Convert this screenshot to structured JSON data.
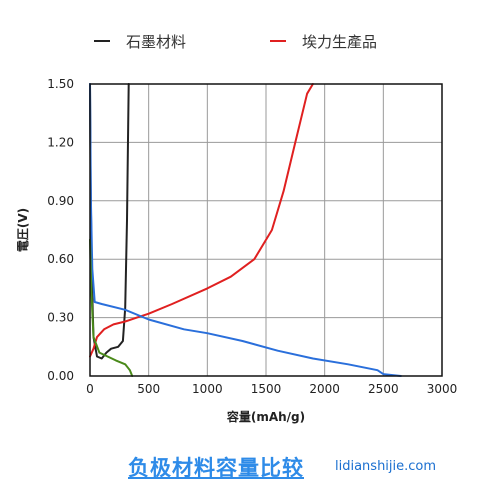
{
  "chart_data": {
    "type": "line",
    "xlabel": "容量(mAh/g)",
    "ylabel": "電圧(V)",
    "xlim": [
      0,
      3000
    ],
    "ylim": [
      0,
      1.5
    ],
    "x_ticks": [
      "0",
      "500",
      "1000",
      "1500",
      "2000",
      "2500",
      "3000"
    ],
    "y_ticks": [
      "0.00",
      "0.30",
      "0.60",
      "0.90",
      "1.20",
      "1.50"
    ],
    "grid": true,
    "legend": "top",
    "series": [
      {
        "name": "石墨材料",
        "color": "#222222",
        "points": [
          [
            0,
            1.5
          ],
          [
            5,
            1.0
          ],
          [
            15,
            0.5
          ],
          [
            30,
            0.2
          ],
          [
            60,
            0.1
          ],
          [
            100,
            0.09
          ],
          [
            140,
            0.12
          ],
          [
            180,
            0.14
          ],
          [
            240,
            0.15
          ],
          [
            280,
            0.18
          ],
          [
            300,
            0.35
          ],
          [
            315,
            0.8
          ],
          [
            330,
            1.5
          ]
        ]
      },
      {
        "name": "埃力生產品",
        "color": "#e02020",
        "points": [
          [
            0,
            0.1
          ],
          [
            30,
            0.14
          ],
          [
            60,
            0.2
          ],
          [
            120,
            0.24
          ],
          [
            200,
            0.265
          ],
          [
            300,
            0.28
          ],
          [
            400,
            0.3
          ],
          [
            500,
            0.32
          ],
          [
            700,
            0.37
          ],
          [
            1000,
            0.45
          ],
          [
            1200,
            0.51
          ],
          [
            1400,
            0.6
          ],
          [
            1550,
            0.75
          ],
          [
            1650,
            0.95
          ],
          [
            1750,
            1.2
          ],
          [
            1850,
            1.45
          ],
          [
            1900,
            1.5
          ]
        ]
      },
      {
        "name": "",
        "color": "#2a6fdb",
        "points": [
          [
            0,
            1.5
          ],
          [
            8,
            0.9
          ],
          [
            20,
            0.55
          ],
          [
            40,
            0.38
          ],
          [
            100,
            0.37
          ],
          [
            300,
            0.34
          ],
          [
            500,
            0.29
          ],
          [
            800,
            0.24
          ],
          [
            1000,
            0.22
          ],
          [
            1300,
            0.18
          ],
          [
            1600,
            0.13
          ],
          [
            1900,
            0.09
          ],
          [
            2200,
            0.06
          ],
          [
            2450,
            0.03
          ],
          [
            2500,
            0.01
          ],
          [
            2650,
            0.0
          ]
        ]
      },
      {
        "name": "",
        "color": "#4a8a1a",
        "points": [
          [
            0,
            0.7
          ],
          [
            10,
            0.45
          ],
          [
            30,
            0.2
          ],
          [
            80,
            0.12
          ],
          [
            150,
            0.1
          ],
          [
            220,
            0.08
          ],
          [
            300,
            0.06
          ],
          [
            340,
            0.03
          ],
          [
            360,
            0.0
          ]
        ]
      }
    ]
  },
  "caption": "负极材料容量比较",
  "watermark": "lidianshijie.com"
}
